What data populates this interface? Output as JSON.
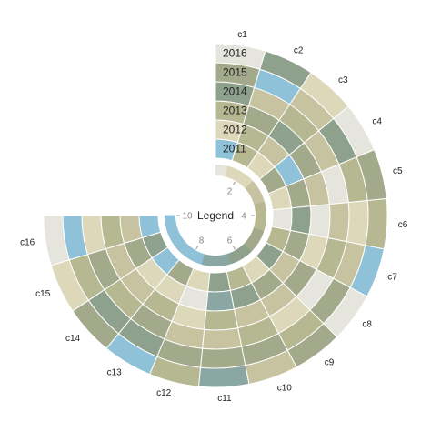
{
  "palette": [
    "#e5e5de",
    "#dcd8b9",
    "#c7c3a0",
    "#b6b892",
    "#a3a98b",
    "#8ea18d",
    "#8aa7a3",
    "#8fc2d8"
  ],
  "chart_data": {
    "type": "radial-heatmap",
    "title": "",
    "segments": [
      "c1",
      "c2",
      "c3",
      "c4",
      "c5",
      "c6",
      "c7",
      "c8",
      "c9",
      "c10",
      "c11",
      "c12",
      "c13",
      "c14",
      "c15",
      "c16"
    ],
    "rings": [
      "2011",
      "2012",
      "2013",
      "2014",
      "2015",
      "2016"
    ],
    "values": [
      [
        8,
        2,
        4,
        6,
        5,
        1
      ],
      [
        4,
        4,
        5,
        3,
        8,
        6
      ],
      [
        2,
        3,
        6,
        4,
        3,
        2
      ],
      [
        5,
        8,
        5,
        3,
        6,
        1
      ],
      [
        2,
        5,
        3,
        1,
        4,
        5
      ],
      [
        1,
        6,
        1,
        3,
        2,
        4
      ],
      [
        4,
        5,
        2,
        4,
        3,
        8
      ],
      [
        6,
        3,
        5,
        1,
        5,
        1
      ],
      [
        2,
        5,
        3,
        2,
        4,
        5
      ],
      [
        4,
        6,
        3,
        4,
        5,
        3
      ],
      [
        6,
        7,
        4,
        3,
        5,
        7
      ],
      [
        2,
        1,
        2,
        3,
        5,
        4
      ],
      [
        5,
        2,
        4,
        5,
        6,
        8
      ],
      [
        8,
        2,
        3,
        4,
        6,
        5
      ],
      [
        6,
        5,
        3,
        5,
        4,
        2
      ],
      [
        8,
        3,
        4,
        2,
        8,
        1
      ]
    ],
    "legend": {
      "title": "Legend",
      "ticks": [
        "2",
        "4",
        "6",
        "8",
        "10"
      ],
      "range": [
        1,
        10
      ]
    }
  }
}
